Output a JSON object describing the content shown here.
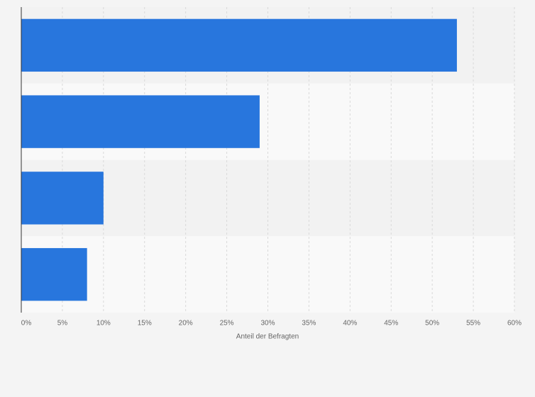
{
  "chart_data": {
    "type": "bar",
    "orientation": "horizontal",
    "x_label": "Anteil der Befragten",
    "categories": [
      null,
      null,
      null,
      null
    ],
    "values": [
      53,
      29,
      10,
      8
    ],
    "color": "#2876dd",
    "xlim": [
      0,
      60
    ],
    "xticks": [
      {
        "value": 0,
        "label": "0%"
      },
      {
        "value": 5,
        "label": "5%"
      },
      {
        "value": 10,
        "label": "10%"
      },
      {
        "value": 15,
        "label": "15%"
      },
      {
        "value": 20,
        "label": "20%"
      },
      {
        "value": 25,
        "label": "25%"
      },
      {
        "value": 30,
        "label": "30%"
      },
      {
        "value": 35,
        "label": "35%"
      },
      {
        "value": 40,
        "label": "40%"
      },
      {
        "value": 45,
        "label": "45%"
      },
      {
        "value": 50,
        "label": "50%"
      },
      {
        "value": 55,
        "label": "55%"
      },
      {
        "value": 60,
        "label": "60%"
      }
    ],
    "grid": true
  }
}
